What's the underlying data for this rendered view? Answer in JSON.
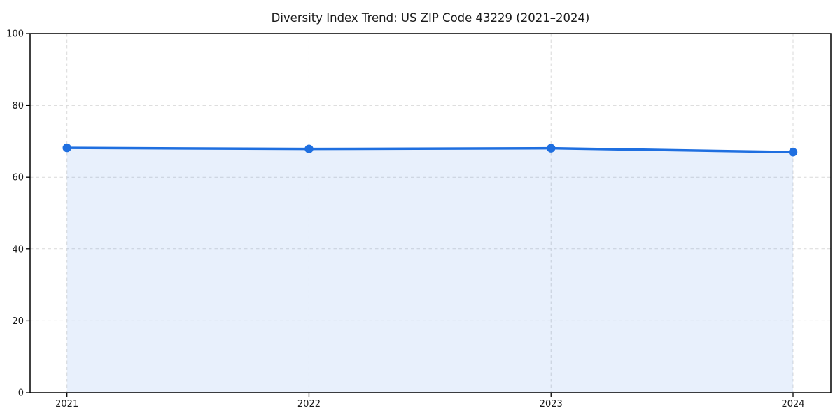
{
  "figure": {
    "background": "#ffffff"
  },
  "chart_data": {
    "type": "line",
    "title": "Diversity Index Trend: US ZIP Code 43229 (2021–2024)",
    "categories": [
      "2021",
      "2022",
      "2023",
      "2024"
    ],
    "series": [
      {
        "name": "Diversity Index",
        "values": [
          68.2,
          67.9,
          68.1,
          67.0
        ],
        "color": "#1f6fe0",
        "marker": "circle",
        "area_fill": true,
        "area_color": "rgba(31, 111, 224, 0.10)"
      }
    ],
    "xlabel": "",
    "ylabel": "",
    "ylim": [
      0,
      100
    ],
    "yticks": [
      0,
      20,
      40,
      60,
      80,
      100
    ],
    "grid": true,
    "grid_line_style": "dashed",
    "grid_color": "#d9d9d9",
    "axis_color": "#000000",
    "tick_label_color": "#1a1a1a",
    "legend_position": "none"
  }
}
